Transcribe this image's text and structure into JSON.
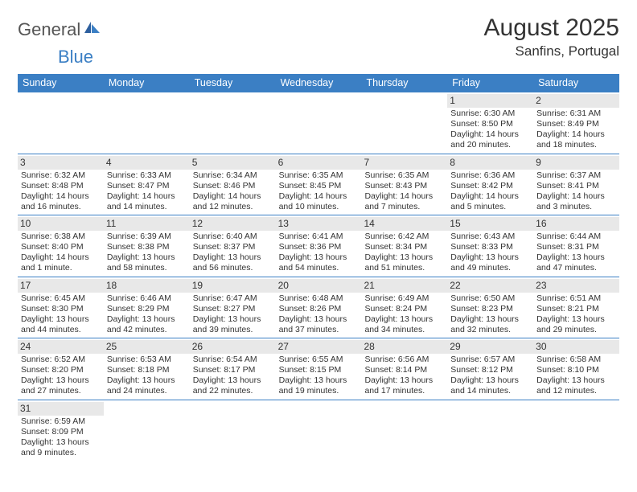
{
  "logo": {
    "general": "General",
    "blue": "Blue"
  },
  "title": "August 2025",
  "location": "Sanfins, Portugal",
  "colors": {
    "header_bar": "#3b7fc4",
    "daynum_bg": "#e8e8e8",
    "row_divider": "#3b7fc4",
    "text": "#333333",
    "logo_grey": "#555555",
    "logo_blue": "#3b7fc4",
    "background": "#ffffff"
  },
  "fonts": {
    "title_size": 30,
    "location_size": 17,
    "dow_size": 12.5,
    "daynum_size": 12,
    "body_size": 10.5
  },
  "dow": [
    "Sunday",
    "Monday",
    "Tuesday",
    "Wednesday",
    "Thursday",
    "Friday",
    "Saturday"
  ],
  "weeks": [
    [
      {
        "n": "",
        "sunrise": "",
        "sunset": "",
        "daylight": ""
      },
      {
        "n": "",
        "sunrise": "",
        "sunset": "",
        "daylight": ""
      },
      {
        "n": "",
        "sunrise": "",
        "sunset": "",
        "daylight": ""
      },
      {
        "n": "",
        "sunrise": "",
        "sunset": "",
        "daylight": ""
      },
      {
        "n": "",
        "sunrise": "",
        "sunset": "",
        "daylight": ""
      },
      {
        "n": "1",
        "sunrise": "Sunrise: 6:30 AM",
        "sunset": "Sunset: 8:50 PM",
        "daylight": "Daylight: 14 hours and 20 minutes."
      },
      {
        "n": "2",
        "sunrise": "Sunrise: 6:31 AM",
        "sunset": "Sunset: 8:49 PM",
        "daylight": "Daylight: 14 hours and 18 minutes."
      }
    ],
    [
      {
        "n": "3",
        "sunrise": "Sunrise: 6:32 AM",
        "sunset": "Sunset: 8:48 PM",
        "daylight": "Daylight: 14 hours and 16 minutes."
      },
      {
        "n": "4",
        "sunrise": "Sunrise: 6:33 AM",
        "sunset": "Sunset: 8:47 PM",
        "daylight": "Daylight: 14 hours and 14 minutes."
      },
      {
        "n": "5",
        "sunrise": "Sunrise: 6:34 AM",
        "sunset": "Sunset: 8:46 PM",
        "daylight": "Daylight: 14 hours and 12 minutes."
      },
      {
        "n": "6",
        "sunrise": "Sunrise: 6:35 AM",
        "sunset": "Sunset: 8:45 PM",
        "daylight": "Daylight: 14 hours and 10 minutes."
      },
      {
        "n": "7",
        "sunrise": "Sunrise: 6:35 AM",
        "sunset": "Sunset: 8:43 PM",
        "daylight": "Daylight: 14 hours and 7 minutes."
      },
      {
        "n": "8",
        "sunrise": "Sunrise: 6:36 AM",
        "sunset": "Sunset: 8:42 PM",
        "daylight": "Daylight: 14 hours and 5 minutes."
      },
      {
        "n": "9",
        "sunrise": "Sunrise: 6:37 AM",
        "sunset": "Sunset: 8:41 PM",
        "daylight": "Daylight: 14 hours and 3 minutes."
      }
    ],
    [
      {
        "n": "10",
        "sunrise": "Sunrise: 6:38 AM",
        "sunset": "Sunset: 8:40 PM",
        "daylight": "Daylight: 14 hours and 1 minute."
      },
      {
        "n": "11",
        "sunrise": "Sunrise: 6:39 AM",
        "sunset": "Sunset: 8:38 PM",
        "daylight": "Daylight: 13 hours and 58 minutes."
      },
      {
        "n": "12",
        "sunrise": "Sunrise: 6:40 AM",
        "sunset": "Sunset: 8:37 PM",
        "daylight": "Daylight: 13 hours and 56 minutes."
      },
      {
        "n": "13",
        "sunrise": "Sunrise: 6:41 AM",
        "sunset": "Sunset: 8:36 PM",
        "daylight": "Daylight: 13 hours and 54 minutes."
      },
      {
        "n": "14",
        "sunrise": "Sunrise: 6:42 AM",
        "sunset": "Sunset: 8:34 PM",
        "daylight": "Daylight: 13 hours and 51 minutes."
      },
      {
        "n": "15",
        "sunrise": "Sunrise: 6:43 AM",
        "sunset": "Sunset: 8:33 PM",
        "daylight": "Daylight: 13 hours and 49 minutes."
      },
      {
        "n": "16",
        "sunrise": "Sunrise: 6:44 AM",
        "sunset": "Sunset: 8:31 PM",
        "daylight": "Daylight: 13 hours and 47 minutes."
      }
    ],
    [
      {
        "n": "17",
        "sunrise": "Sunrise: 6:45 AM",
        "sunset": "Sunset: 8:30 PM",
        "daylight": "Daylight: 13 hours and 44 minutes."
      },
      {
        "n": "18",
        "sunrise": "Sunrise: 6:46 AM",
        "sunset": "Sunset: 8:29 PM",
        "daylight": "Daylight: 13 hours and 42 minutes."
      },
      {
        "n": "19",
        "sunrise": "Sunrise: 6:47 AM",
        "sunset": "Sunset: 8:27 PM",
        "daylight": "Daylight: 13 hours and 39 minutes."
      },
      {
        "n": "20",
        "sunrise": "Sunrise: 6:48 AM",
        "sunset": "Sunset: 8:26 PM",
        "daylight": "Daylight: 13 hours and 37 minutes."
      },
      {
        "n": "21",
        "sunrise": "Sunrise: 6:49 AM",
        "sunset": "Sunset: 8:24 PM",
        "daylight": "Daylight: 13 hours and 34 minutes."
      },
      {
        "n": "22",
        "sunrise": "Sunrise: 6:50 AM",
        "sunset": "Sunset: 8:23 PM",
        "daylight": "Daylight: 13 hours and 32 minutes."
      },
      {
        "n": "23",
        "sunrise": "Sunrise: 6:51 AM",
        "sunset": "Sunset: 8:21 PM",
        "daylight": "Daylight: 13 hours and 29 minutes."
      }
    ],
    [
      {
        "n": "24",
        "sunrise": "Sunrise: 6:52 AM",
        "sunset": "Sunset: 8:20 PM",
        "daylight": "Daylight: 13 hours and 27 minutes."
      },
      {
        "n": "25",
        "sunrise": "Sunrise: 6:53 AM",
        "sunset": "Sunset: 8:18 PM",
        "daylight": "Daylight: 13 hours and 24 minutes."
      },
      {
        "n": "26",
        "sunrise": "Sunrise: 6:54 AM",
        "sunset": "Sunset: 8:17 PM",
        "daylight": "Daylight: 13 hours and 22 minutes."
      },
      {
        "n": "27",
        "sunrise": "Sunrise: 6:55 AM",
        "sunset": "Sunset: 8:15 PM",
        "daylight": "Daylight: 13 hours and 19 minutes."
      },
      {
        "n": "28",
        "sunrise": "Sunrise: 6:56 AM",
        "sunset": "Sunset: 8:14 PM",
        "daylight": "Daylight: 13 hours and 17 minutes."
      },
      {
        "n": "29",
        "sunrise": "Sunrise: 6:57 AM",
        "sunset": "Sunset: 8:12 PM",
        "daylight": "Daylight: 13 hours and 14 minutes."
      },
      {
        "n": "30",
        "sunrise": "Sunrise: 6:58 AM",
        "sunset": "Sunset: 8:10 PM",
        "daylight": "Daylight: 13 hours and 12 minutes."
      }
    ],
    [
      {
        "n": "31",
        "sunrise": "Sunrise: 6:59 AM",
        "sunset": "Sunset: 8:09 PM",
        "daylight": "Daylight: 13 hours and 9 minutes."
      },
      {
        "n": "",
        "sunrise": "",
        "sunset": "",
        "daylight": ""
      },
      {
        "n": "",
        "sunrise": "",
        "sunset": "",
        "daylight": ""
      },
      {
        "n": "",
        "sunrise": "",
        "sunset": "",
        "daylight": ""
      },
      {
        "n": "",
        "sunrise": "",
        "sunset": "",
        "daylight": ""
      },
      {
        "n": "",
        "sunrise": "",
        "sunset": "",
        "daylight": ""
      },
      {
        "n": "",
        "sunrise": "",
        "sunset": "",
        "daylight": ""
      }
    ]
  ]
}
